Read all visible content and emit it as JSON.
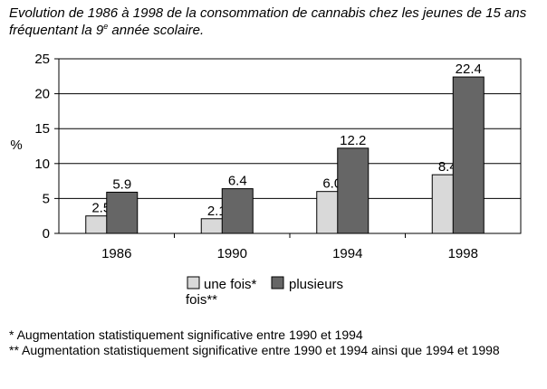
{
  "title": {
    "before": "Evolution de 1986 à 1998 de la consommation de cannabis chez les jeunes de 15 ans fréquentant la 9",
    "sup": "e",
    "after": " année scolaire."
  },
  "chart_data": {
    "type": "bar",
    "categories": [
      "1986",
      "1990",
      "1994",
      "1998"
    ],
    "series": [
      {
        "name": "une fois*",
        "continuation": "fois**",
        "values": [
          2.5,
          2.1,
          6.0,
          8.4
        ],
        "value_labels": [
          "2.5",
          "2.1",
          "6.0",
          "8.4"
        ],
        "color": "#d9d9d9"
      },
      {
        "name": "plusieurs",
        "values": [
          5.9,
          6.4,
          12.2,
          22.4
        ],
        "value_labels": [
          "5.9",
          "6.4",
          "12.2",
          "22.4"
        ],
        "color": "#666666"
      }
    ],
    "ylabel": "%",
    "ylim": [
      0,
      25
    ],
    "yticks": [
      0,
      5,
      10,
      15,
      20,
      25
    ],
    "grid": true,
    "legend_position": "bottom"
  },
  "footnotes": [
    "* Augmentation statistiquement significative entre 1990 et 1994",
    "** Augmentation statistiquement significative entre 1990 et 1994 ainsi que 1994 et 1998"
  ]
}
